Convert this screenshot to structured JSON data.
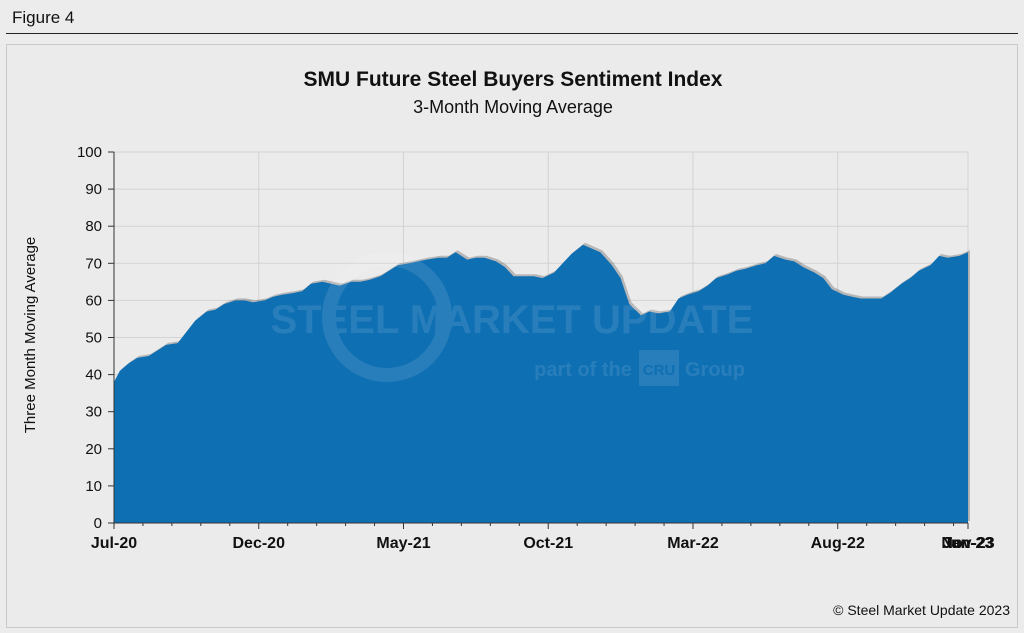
{
  "figure_label": "Figure 4",
  "copyright": "© Steel Market Update 2023",
  "watermark": {
    "line1": "STEEL MARKET UPDATE",
    "line2a": "part of the",
    "line2b": "Group",
    "badge": "CRU"
  },
  "colors": {
    "area": "#0f6fb3",
    "grid": "#d3d3d3",
    "axis": "#333333",
    "text": "#111111"
  },
  "chart_data": {
    "type": "area",
    "title": "SMU Future Steel Buyers Sentiment Index",
    "subtitle": "3-Month Moving Average",
    "ylabel": "Three Month Moving Average",
    "xlabel": "",
    "ylim": [
      0,
      100
    ],
    "yticks": [
      0,
      10,
      20,
      30,
      40,
      50,
      60,
      70,
      80,
      90,
      100
    ],
    "xtick_labels": [
      "Jul-20",
      "Dec-20",
      "May-21",
      "Oct-21",
      "Mar-22",
      "Aug-22",
      "Jan-23",
      "Jun-23",
      "Nov-23"
    ],
    "x_start": "Jul-20",
    "x_end": "Nov-23",
    "series": [
      {
        "name": "SMU Future Steel Buyers Sentiment Index (3MMA)",
        "points": [
          [
            0,
            38
          ],
          [
            0.2,
            41
          ],
          [
            0.5,
            43
          ],
          [
            0.8,
            44.5
          ],
          [
            1.2,
            45
          ],
          [
            1.5,
            46.5
          ],
          [
            1.8,
            48
          ],
          [
            2.2,
            48.5
          ],
          [
            2.5,
            51.5
          ],
          [
            2.8,
            54.5
          ],
          [
            3.2,
            57
          ],
          [
            3.5,
            57.5
          ],
          [
            3.8,
            59
          ],
          [
            4.2,
            60
          ],
          [
            4.5,
            60
          ],
          [
            4.8,
            59.5
          ],
          [
            5.2,
            60
          ],
          [
            5.5,
            61
          ],
          [
            5.8,
            61.5
          ],
          [
            6.2,
            62
          ],
          [
            6.5,
            62.5
          ],
          [
            6.8,
            64.5
          ],
          [
            7.2,
            65
          ],
          [
            7.5,
            64.5
          ],
          [
            7.8,
            64
          ],
          [
            8.2,
            65
          ],
          [
            8.5,
            65
          ],
          [
            8.8,
            65.5
          ],
          [
            9.2,
            66.5
          ],
          [
            9.5,
            68
          ],
          [
            9.8,
            69.5
          ],
          [
            10.2,
            70
          ],
          [
            10.5,
            70.5
          ],
          [
            10.8,
            71
          ],
          [
            11.2,
            71.5
          ],
          [
            11.5,
            71.5
          ],
          [
            11.8,
            73
          ],
          [
            12.2,
            71
          ],
          [
            12.5,
            71.5
          ],
          [
            12.8,
            71.5
          ],
          [
            13.2,
            70.5
          ],
          [
            13.5,
            69
          ],
          [
            13.8,
            66.5
          ],
          [
            14.2,
            66.5
          ],
          [
            14.5,
            66.5
          ],
          [
            14.8,
            66
          ],
          [
            15.2,
            67.5
          ],
          [
            15.5,
            70
          ],
          [
            15.8,
            72.5
          ],
          [
            16.2,
            75
          ],
          [
            16.5,
            74
          ],
          [
            16.8,
            73
          ],
          [
            17.2,
            69.5
          ],
          [
            17.5,
            66
          ],
          [
            17.8,
            59
          ],
          [
            18.2,
            56
          ],
          [
            18.5,
            57
          ],
          [
            18.8,
            56.5
          ],
          [
            19.2,
            57
          ],
          [
            19.5,
            60.5
          ],
          [
            19.8,
            61.5
          ],
          [
            20.2,
            62.5
          ],
          [
            20.5,
            64
          ],
          [
            20.8,
            66
          ],
          [
            21.2,
            67
          ],
          [
            21.5,
            68
          ],
          [
            21.8,
            68.5
          ],
          [
            22.2,
            69.5
          ],
          [
            22.5,
            70
          ],
          [
            22.8,
            72
          ],
          [
            23.2,
            71
          ],
          [
            23.5,
            70.5
          ],
          [
            23.8,
            69
          ],
          [
            24.2,
            67.5
          ],
          [
            24.5,
            66
          ],
          [
            24.8,
            63
          ],
          [
            25.2,
            61.5
          ],
          [
            25.5,
            61
          ],
          [
            25.8,
            60.5
          ],
          [
            26.2,
            60.5
          ],
          [
            26.5,
            60.5
          ],
          [
            26.8,
            62
          ],
          [
            27.2,
            64.5
          ],
          [
            27.5,
            66
          ],
          [
            27.8,
            68
          ],
          [
            28.2,
            69.5
          ],
          [
            28.5,
            72
          ],
          [
            28.8,
            71.5
          ],
          [
            29.2,
            72
          ],
          [
            29.5,
            73
          ]
        ]
      }
    ]
  }
}
